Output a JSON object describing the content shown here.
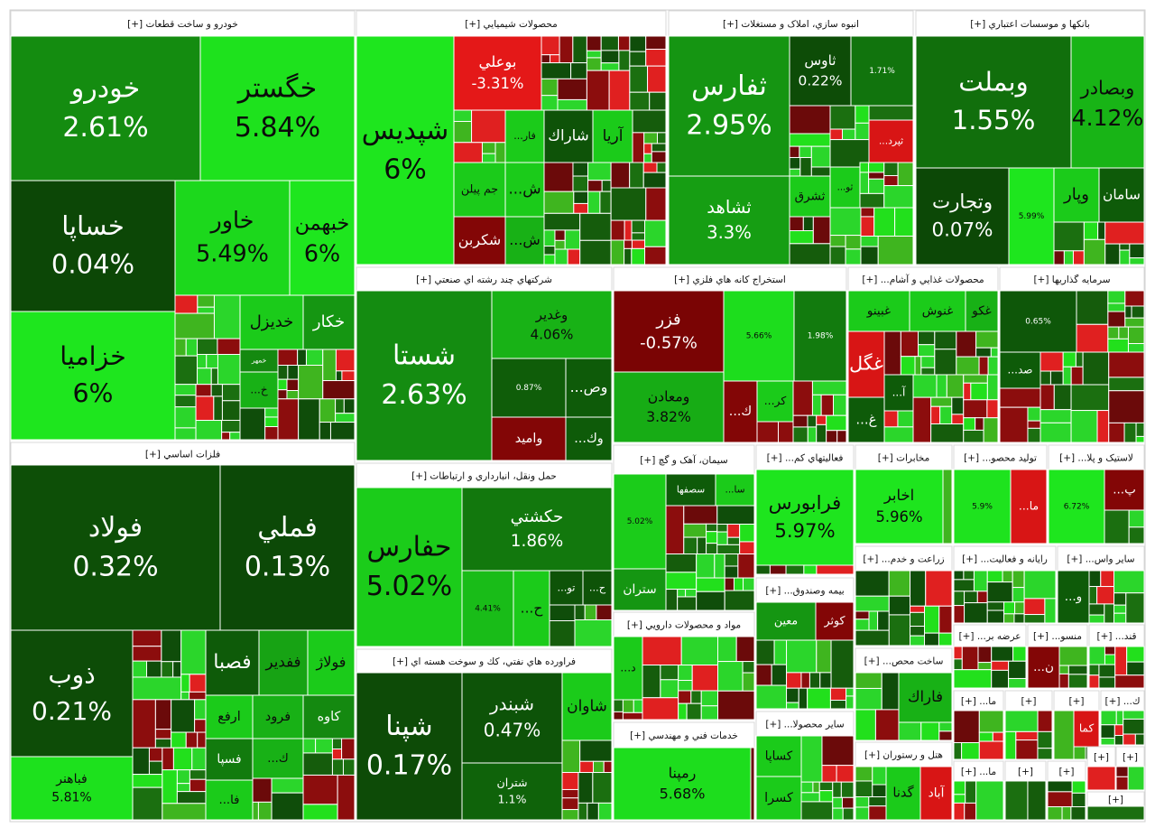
{
  "chart_data": {
    "type": "treemap",
    "groups": [
      {
        "title": "خودرو و ساخت قطعات [+]",
        "names": [
          "خودرو",
          "خگستر",
          "خساپا",
          "خزاميا",
          "خاور",
          "خبهمن",
          "خكار",
          "خديزل",
          "خمهر",
          "خ..."
        ],
        "values": [
          2.61,
          5.84,
          0.04,
          6,
          5.49,
          6,
          3,
          5,
          2.5,
          4
        ],
        "value_labels": [
          "2.61%",
          "5.84%",
          "0.04%",
          "6%",
          "5.49%",
          "6%",
          null,
          null,
          null,
          null
        ]
      },
      {
        "title": "فلزات اساسي [+]",
        "names": [
          "فولاد",
          "فملي",
          "ذوب",
          "فباهنر",
          "فصبا",
          "ففدير",
          "فولاژ",
          "ارفع",
          "فرود",
          "كاوه",
          "فسپا",
          "فا...",
          "ك..."
        ],
        "values": [
          0.32,
          0.13,
          0.21,
          5.81,
          0.8,
          3.5,
          5,
          5,
          4,
          2.5,
          2,
          5,
          4
        ],
        "value_labels": [
          "0.32%",
          "0.13%",
          "0.21%",
          "5.81%",
          null,
          null,
          null,
          null,
          null,
          null,
          null,
          null,
          null
        ]
      },
      {
        "title": "محصولات شيميايي [+]",
        "names": [
          "شپديس",
          "بوعلي",
          "شاراك",
          "آريا",
          "فار...",
          "جم پيلن",
          "شكربن",
          "ش...",
          "ش..."
        ],
        "values": [
          6,
          -3.31,
          0.5,
          5,
          5,
          5,
          -0.8,
          5,
          4
        ],
        "value_labels": [
          "6%",
          "-3.31%",
          null,
          null,
          null,
          null,
          null,
          null,
          null
        ]
      },
      {
        "title": "انبوه سازي، املاک و مستغلات [+]",
        "names": [
          "ثفارس",
          "ثشاهد",
          "ثاوس",
          null,
          "ثپرد...",
          "ثشرق",
          "ثو..."
        ],
        "values": [
          2.95,
          3.3,
          0.22,
          1.71,
          -3,
          5,
          5
        ],
        "value_labels": [
          "2.95%",
          "3.3%",
          "0.22%",
          "1.71%",
          null,
          null,
          null
        ]
      },
      {
        "title": "بانكها و موسسات اعتباري [+]",
        "names": [
          "وبملت",
          "وبصادر",
          "وتجارت",
          null,
          "وپار",
          "سامان"
        ],
        "values": [
          1.55,
          4.12,
          0.07,
          5.99,
          5,
          0.8
        ],
        "value_labels": [
          "1.55%",
          "4.12%",
          "0.07%",
          "5.99%",
          null,
          null
        ]
      },
      {
        "title": "شركتهاي چند رشته اي صنعتي [+]",
        "names": [
          "شستا",
          "وغدير",
          null,
          "وص...",
          "واميد",
          "وك..."
        ],
        "values": [
          2.63,
          4.06,
          0.87,
          0.8,
          -0.8,
          0.8
        ],
        "value_labels": [
          "2.63%",
          "4.06%",
          "0.87%",
          null,
          null,
          null
        ]
      },
      {
        "title": "استخراج كانه هاي فلزي [+]",
        "names": [
          "فزر",
          null,
          null,
          "ومعادن",
          "ك...",
          "كر..."
        ],
        "values": [
          -0.57,
          5.66,
          1.98,
          3.82,
          -0.8,
          5
        ],
        "value_labels": [
          "-0.57%",
          "5.66%",
          "1.98%",
          "3.82%",
          null,
          null
        ]
      },
      {
        "title": "محصولات غذايي و آشام... [+]",
        "names": [
          "غبينو",
          "غنوش",
          "غكو",
          "غگل",
          "آ...",
          "غ..."
        ],
        "values": [
          5,
          5,
          4,
          -3,
          0.8,
          0.8
        ]
      },
      {
        "title": "سرمايه گذاريها [+]",
        "names": [
          null,
          "صد..."
        ],
        "values": [
          0.65,
          0.8
        ],
        "value_labels": [
          "0.65%",
          null
        ]
      },
      {
        "title": "حمل ونقل، انبارداري و ارتباطات [+]",
        "names": [
          "حفارس",
          "حكشتي",
          null,
          "ح...",
          "تو...",
          "ح..."
        ],
        "values": [
          5.02,
          1.86,
          4.41,
          5,
          0.5,
          0.5
        ],
        "value_labels": [
          "5.02%",
          "1.86%",
          "4.41%",
          null,
          null,
          null
        ]
      },
      {
        "title": "فراورده هاي نفتي، كك و سوخت هسته اي [+]",
        "names": [
          "شپنا",
          "شبندر",
          "شاوان",
          "شتران"
        ],
        "values": [
          0.17,
          0.47,
          5,
          1.1
        ],
        "value_labels": [
          "0.17%",
          "0.47%",
          null,
          "1.1%"
        ]
      },
      {
        "title": "سيمان، آهک و گچ [+]",
        "names": [
          null,
          "سصفها",
          "سا...",
          "ستران"
        ],
        "values": [
          5.02,
          0.8,
          5,
          3
        ],
        "value_labels": [
          "5.02%",
          null,
          null,
          null
        ]
      },
      {
        "title": "فعاليتهاي کم... [+]",
        "names": [
          "فرابورس"
        ],
        "values": [
          5.97
        ],
        "value_labels": [
          "5.97%"
        ]
      },
      {
        "title": "مخابرات [+]",
        "names": [
          "اخابر"
        ],
        "values": [
          5.96
        ],
        "value_labels": [
          "5.96%"
        ]
      },
      {
        "title": "توليد محصو... [+]",
        "names": [
          null,
          "ما..."
        ],
        "values": [
          5.9,
          -3
        ],
        "value_labels": [
          "5.9%",
          null
        ]
      },
      {
        "title": "لاستيک و پلا... [+]",
        "names": [
          null,
          "پ..."
        ],
        "values": [
          6.72,
          -0.8
        ],
        "value_labels": [
          "6.72%",
          null
        ]
      },
      {
        "title": "مواد و محصولات دارويي [+]",
        "names": [
          "د..."
        ],
        "values": [
          5
        ]
      },
      {
        "title": "خدمات فني و مهندسي [+]",
        "names": [
          "رمپنا"
        ],
        "values": [
          5.68
        ],
        "value_labels": [
          "5.68%"
        ]
      },
      {
        "title": "بيمه وصندوق... [+]",
        "names": [
          "معين",
          "كوثر"
        ],
        "values": [
          3,
          -0.8
        ]
      },
      {
        "title": "ساير محصولا... [+]",
        "names": [
          "كساپا",
          "كسرا"
        ],
        "values": [
          5,
          5
        ]
      },
      {
        "title": "زراعت و خدم... [+]"
      },
      {
        "title": "رايانه و فعاليت... [+]"
      },
      {
        "title": "ساير واس... [+]",
        "names": [
          "و..."
        ],
        "values": [
          0.8
        ]
      },
      {
        "title": "ساخت محص... [+]",
        "names": [
          "فاراك"
        ],
        "values": [
          4
        ]
      },
      {
        "title": "هتل و رستوران [+]",
        "names": [
          "گدنا",
          "آباد"
        ],
        "values": [
          5,
          -3
        ]
      },
      {
        "title": "عرضه بر... [+]"
      },
      {
        "title": "منسو... [+]",
        "names": [
          "ن..."
        ],
        "values": [
          -0.8
        ]
      },
      {
        "title": "قند... [+]"
      },
      {
        "title": "ما... [+]"
      },
      {
        "title": "[+]"
      },
      {
        "title": "[+]",
        "names": [
          "كما"
        ],
        "values": [
          -3
        ]
      },
      {
        "title": "ك... [+]"
      },
      {
        "title": "ما... [+]"
      },
      {
        "title": "[+]"
      },
      {
        "title": "[+]"
      },
      {
        "title": "[+]"
      },
      {
        "title": "[+]"
      },
      {
        "title": "[+]"
      }
    ]
  }
}
